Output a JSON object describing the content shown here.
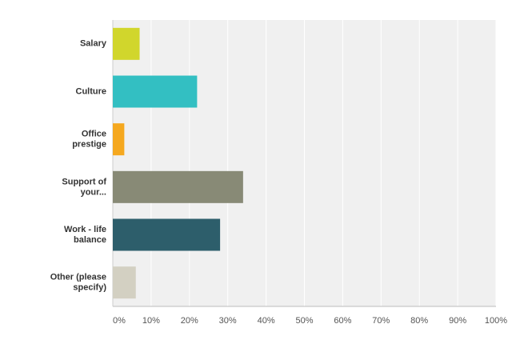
{
  "chart_data": {
    "type": "hbar",
    "categories": [
      "Salary",
      "Culture",
      "Office prestige",
      "Support of your...",
      "Work - life balance",
      "Other (please specify)"
    ],
    "values": [
      7,
      22,
      3,
      34,
      28,
      6
    ],
    "colors": [
      "#d1d62c",
      "#33bfc2",
      "#f5a81f",
      "#888a76",
      "#2d5e6b",
      "#d3d0c2"
    ],
    "xlim": [
      0,
      100
    ],
    "xticks": [
      {
        "value": 0,
        "label": "0%"
      },
      {
        "value": 10,
        "label": "10%"
      },
      {
        "value": 20,
        "label": "20%"
      },
      {
        "value": 30,
        "label": "30%"
      },
      {
        "value": 40,
        "label": "40%"
      },
      {
        "value": 50,
        "label": "50%"
      },
      {
        "value": 60,
        "label": "60%"
      },
      {
        "value": 70,
        "label": "70%"
      },
      {
        "value": 80,
        "label": "80%"
      },
      {
        "value": 90,
        "label": "90%"
      },
      {
        "value": 100,
        "label": "100%"
      }
    ],
    "grid": true
  }
}
